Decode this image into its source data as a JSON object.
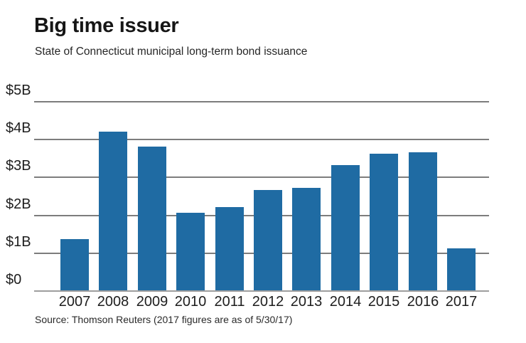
{
  "chart_data": {
    "type": "bar",
    "title": "Big time issuer",
    "subtitle": "State of Connecticut municipal long-term bond issuance",
    "source": "Source: Thomson Reuters (2017 figures are as of 5/30/17)",
    "categories": [
      "2007",
      "2008",
      "2009",
      "2010",
      "2011",
      "2012",
      "2013",
      "2014",
      "2015",
      "2016",
      "2017"
    ],
    "values": [
      1.35,
      4.2,
      3.8,
      2.05,
      2.2,
      2.65,
      2.7,
      3.3,
      3.6,
      3.65,
      1.1
    ],
    "unit": "billions of USD",
    "xlabel": "",
    "ylabel": "",
    "ylim": [
      0,
      5
    ],
    "y_tick_values": [
      0,
      1,
      2,
      3,
      4,
      5
    ],
    "y_tick_labels": [
      "$0",
      "$1B",
      "$2B",
      "$3B",
      "$4B",
      "$5B"
    ],
    "grid": true,
    "legend": "none",
    "bar_color": "#1f6ba3",
    "gridline_color": "#7d7d7d",
    "baseline_color": "#9e9e9e",
    "background_color": "#ffffff"
  }
}
